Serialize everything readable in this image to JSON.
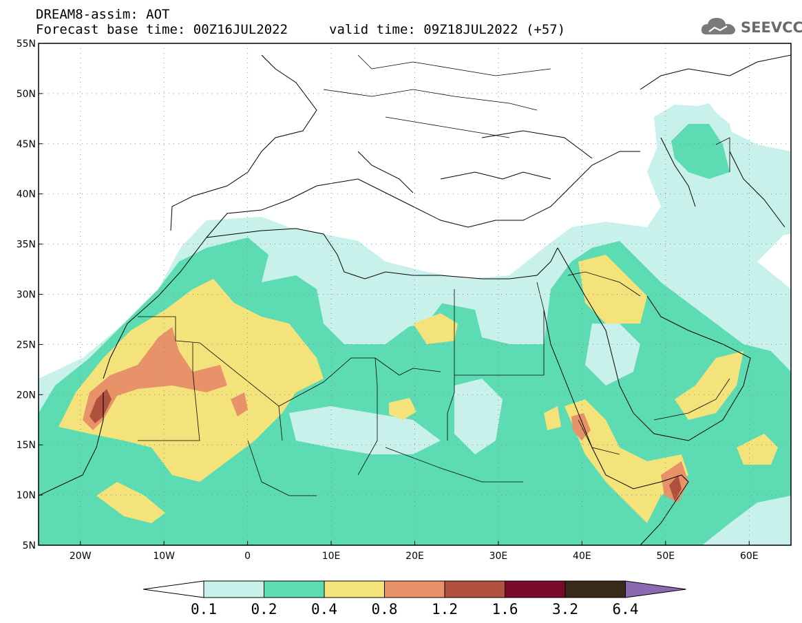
{
  "header": {
    "model_title": "DREAM8-assim: AOT",
    "base_time": "Forecast base time: 00Z16JUL2022",
    "valid_time": "valid time: 09Z18JUL2022 (+57)"
  },
  "logo": {
    "text": "SEEVCCC",
    "icon": "cloud-icon"
  },
  "map": {
    "lon_range": [
      -25,
      65
    ],
    "lat_range": [
      5,
      55
    ],
    "lat_ticks": [
      "55N",
      "50N",
      "45N",
      "40N",
      "35N",
      "30N",
      "25N",
      "20N",
      "15N",
      "10N",
      "5N"
    ],
    "lon_ticks": [
      "20W",
      "10W",
      "0",
      "10E",
      "20E",
      "30E",
      "40E",
      "50E",
      "60E"
    ],
    "grid": "dotted"
  },
  "colorbar": {
    "labels": [
      "0.1",
      "0.2",
      "0.4",
      "0.8",
      "1.2",
      "1.6",
      "3.2",
      "6.4"
    ],
    "colors": [
      "#c8f1ec",
      "#5ddbb2",
      "#f4e37a",
      "#e8926a",
      "#b0503e",
      "#7a0a2a",
      "#3a2a1a",
      "#8a6ab0"
    ]
  },
  "legend_colors": {
    "under": "#ffffff",
    "c1": "#c8f1ec",
    "c2": "#5ddbb2",
    "c3": "#f4e37a",
    "c4": "#e8926a",
    "c5": "#b0503e"
  }
}
